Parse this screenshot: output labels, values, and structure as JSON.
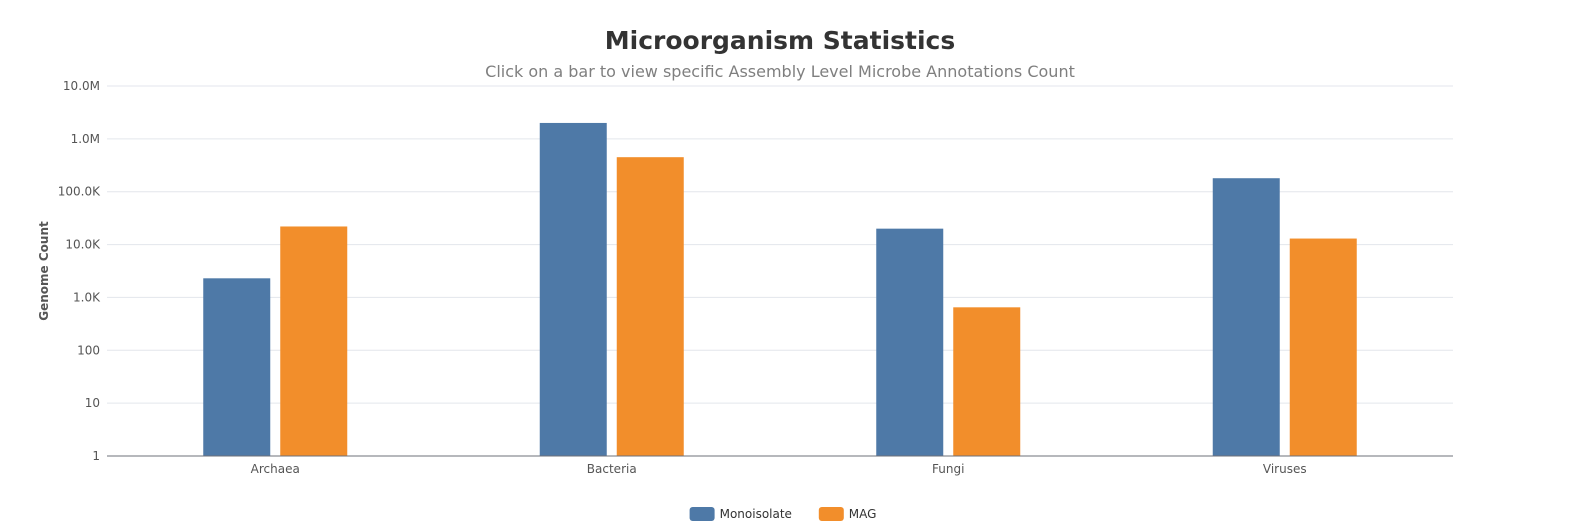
{
  "chart_data": {
    "type": "bar",
    "title": "Microorganism Statistics",
    "subtitle": "Click on a bar to view specific Assembly Level Microbe Annotations Count",
    "ylabel": "Genome Count",
    "xlabel": "",
    "yscale": "log",
    "ylim": [
      1,
      10000000
    ],
    "yticks": [
      1,
      10,
      100,
      1000,
      10000,
      100000,
      1000000,
      10000000
    ],
    "ytick_labels": [
      "1",
      "10",
      "100",
      "1.0K",
      "10.0K",
      "100.0K",
      "1.0M",
      "10.0M"
    ],
    "categories": [
      "Archaea",
      "Bacteria",
      "Fungi",
      "Viruses"
    ],
    "series": [
      {
        "name": "Monoisolate",
        "color": "#4e79a7",
        "values": [
          2300,
          2000000,
          20000,
          180000
        ]
      },
      {
        "name": "MAG",
        "color": "#f28e2b",
        "values": [
          22000,
          450000,
          650,
          13000
        ]
      }
    ],
    "grid": true,
    "legend_position": "bottom-center"
  }
}
